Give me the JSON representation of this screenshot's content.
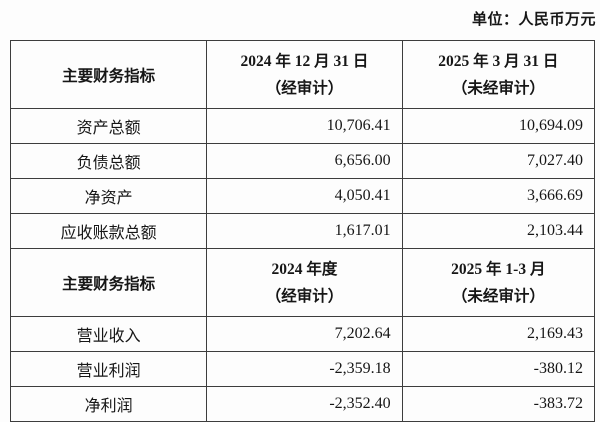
{
  "unit_label": "单位：人民币万元",
  "table": {
    "sections": [
      {
        "header": {
          "col1": "主要财务指标",
          "col2_line1": "2024 年 12 月 31 日",
          "col2_line2": "（经审计）",
          "col3_line1": "2025 年 3 月 31 日",
          "col3_line2": "（未经审计）"
        },
        "rows": [
          {
            "label": "资产总额",
            "v1": "10,706.41",
            "v2": "10,694.09"
          },
          {
            "label": "负债总额",
            "v1": "6,656.00",
            "v2": "7,027.40"
          },
          {
            "label": "净资产",
            "v1": "4,050.41",
            "v2": "3,666.69"
          },
          {
            "label": "应收账款总额",
            "v1": "1,617.01",
            "v2": "2,103.44"
          }
        ]
      },
      {
        "header": {
          "col1": "主要财务指标",
          "col2_line1": "2024 年度",
          "col2_line2": "（经审计）",
          "col3_line1": "2025 年 1-3 月",
          "col3_line2": "（未经审计）"
        },
        "rows": [
          {
            "label": "营业收入",
            "v1": "7,202.64",
            "v2": "2,169.43"
          },
          {
            "label": "营业利润",
            "v1": "-2,359.18",
            "v2": "-380.12"
          },
          {
            "label": "净利润",
            "v1": "-2,352.40",
            "v2": "-383.72"
          }
        ]
      }
    ]
  }
}
